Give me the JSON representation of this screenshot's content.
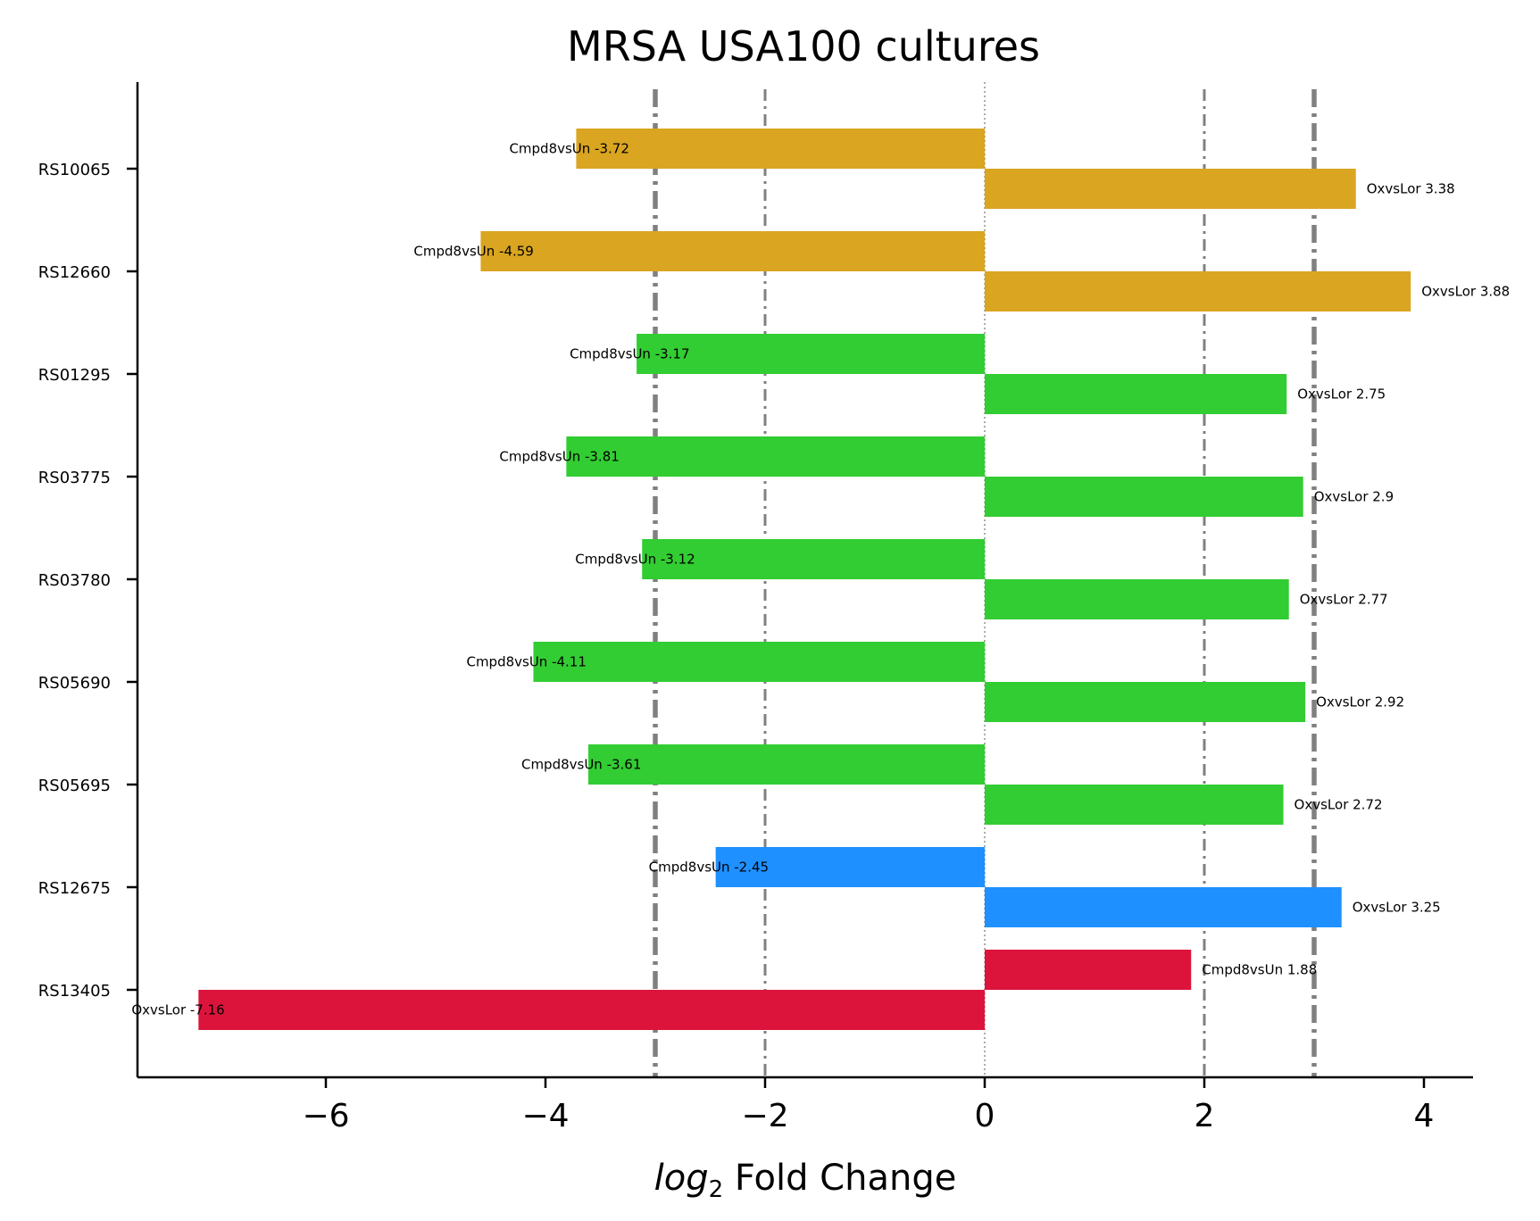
{
  "chart_data": {
    "type": "bar",
    "orientation": "horizontal",
    "title": "MRSA USA100 cultures",
    "xlabel_italic": "log",
    "xlabel_sub": "2",
    "xlabel_rest": " Fold Change",
    "ylabel": "",
    "xlim": [
      -7.6,
      4.4
    ],
    "xticks": [
      -6,
      -4,
      -2,
      0,
      2,
      4
    ],
    "xtick_labels": [
      "−6",
      "−4",
      "−2",
      "0",
      "2",
      "4"
    ],
    "reference_lines": [
      {
        "x": -3,
        "style": "thick-dashdot",
        "color": "#808080"
      },
      {
        "x": -2,
        "style": "thin-dashdot",
        "color": "#808080"
      },
      {
        "x": 0,
        "style": "dotted",
        "color": "#808080"
      },
      {
        "x": 2,
        "style": "thin-dashdot",
        "color": "#808080"
      },
      {
        "x": 3,
        "style": "thick-dashdot",
        "color": "#808080"
      }
    ],
    "categories": [
      "RS10065",
      "RS12660",
      "RS01295",
      "RS03775",
      "RS03780",
      "RS05690",
      "RS05695",
      "RS12675",
      "RS13405"
    ],
    "groups": [
      {
        "category": "RS10065",
        "color": "#DAA520",
        "bars": [
          {
            "label": "Cmpd8vsUn -3.72",
            "value": -3.72
          },
          {
            "label": "OxvsLor 3.38",
            "value": 3.38
          }
        ]
      },
      {
        "category": "RS12660",
        "color": "#DAA520",
        "bars": [
          {
            "label": "Cmpd8vsUn -4.59",
            "value": -4.59
          },
          {
            "label": "OxvsLor 3.88",
            "value": 3.88
          }
        ]
      },
      {
        "category": "RS01295",
        "color": "#32CD32",
        "bars": [
          {
            "label": "Cmpd8vsUn -3.17",
            "value": -3.17
          },
          {
            "label": "OxvsLor 2.75",
            "value": 2.75
          }
        ]
      },
      {
        "category": "RS03775",
        "color": "#32CD32",
        "bars": [
          {
            "label": "Cmpd8vsUn -3.81",
            "value": -3.81
          },
          {
            "label": "OxvsLor 2.9",
            "value": 2.9
          }
        ]
      },
      {
        "category": "RS03780",
        "color": "#32CD32",
        "bars": [
          {
            "label": "Cmpd8vsUn -3.12",
            "value": -3.12
          },
          {
            "label": "OxvsLor 2.77",
            "value": 2.77
          }
        ]
      },
      {
        "category": "RS05690",
        "color": "#32CD32",
        "bars": [
          {
            "label": "Cmpd8vsUn -4.11",
            "value": -4.11
          },
          {
            "label": "OxvsLor 2.92",
            "value": 2.92
          }
        ]
      },
      {
        "category": "RS05695",
        "color": "#32CD32",
        "bars": [
          {
            "label": "Cmpd8vsUn -3.61",
            "value": -3.61
          },
          {
            "label": "OxvsLor 2.72",
            "value": 2.72
          }
        ]
      },
      {
        "category": "RS12675",
        "color": "#1E90FF",
        "bars": [
          {
            "label": "Cmpd8vsUn -2.45",
            "value": -2.45
          },
          {
            "label": "OxvsLor 3.25",
            "value": 3.25
          }
        ]
      },
      {
        "category": "RS13405",
        "color": "#DC143C",
        "bars": [
          {
            "label": "Cmpd8vsUn 1.88",
            "value": 1.88
          },
          {
            "label": "OxvsLor -7.16",
            "value": -7.16
          }
        ]
      }
    ],
    "grid": false,
    "legend": "none"
  }
}
